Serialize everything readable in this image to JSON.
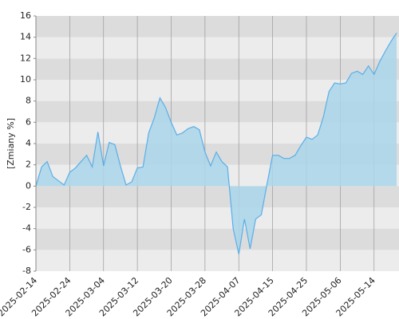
{
  "chart_data": {
    "type": "area",
    "y_label": "[Zmiany %]",
    "categories": [
      "2025-02-14",
      null,
      null,
      null,
      null,
      null,
      "2025-02-24",
      null,
      null,
      null,
      null,
      null,
      "2025-03-04",
      null,
      null,
      null,
      null,
      null,
      "2025-03-12",
      null,
      null,
      null,
      null,
      null,
      "2025-03-20",
      null,
      null,
      null,
      null,
      null,
      "2025-03-28",
      null,
      null,
      null,
      null,
      null,
      "2025-04-07",
      null,
      null,
      null,
      null,
      null,
      "2025-04-15",
      null,
      null,
      null,
      null,
      null,
      "2025-04-25",
      null,
      null,
      null,
      null,
      null,
      "2025-05-06",
      null,
      null,
      null,
      null,
      null,
      "2025-05-14",
      null,
      null,
      null,
      null
    ],
    "values": [
      0,
      1.8,
      2.3,
      0.9,
      0.5,
      0.1,
      1.3,
      1.7,
      2.3,
      2.9,
      1.8,
      5.1,
      1.9,
      4.1,
      3.9,
      1.9,
      0.1,
      0.4,
      1.7,
      1.8,
      5.0,
      6.4,
      8.3,
      7.4,
      6.0,
      4.8,
      5.0,
      5.4,
      5.6,
      5.3,
      3.2,
      1.9,
      3.2,
      2.3,
      1.8,
      -4.0,
      -6.4,
      -3.1,
      -5.9,
      -3.1,
      -2.7,
      0.2,
      2.9,
      2.9,
      2.6,
      2.6,
      2.9,
      3.8,
      4.6,
      4.4,
      4.8,
      6.5,
      8.9,
      9.7,
      9.6,
      9.7,
      10.6,
      10.8,
      10.5,
      11.3,
      10.5,
      11.7,
      12.7,
      13.6,
      14.4
    ],
    "color": "#5aaee8",
    "fill": "#a9d6ea",
    "ylim": [
      -8,
      16
    ],
    "yticks": [
      -8,
      -6,
      -4,
      -2,
      0,
      2,
      4,
      6,
      8,
      10,
      12,
      14,
      16
    ],
    "band_colors": [
      "#dcdcdc",
      "#ececec"
    ],
    "grid": true
  }
}
